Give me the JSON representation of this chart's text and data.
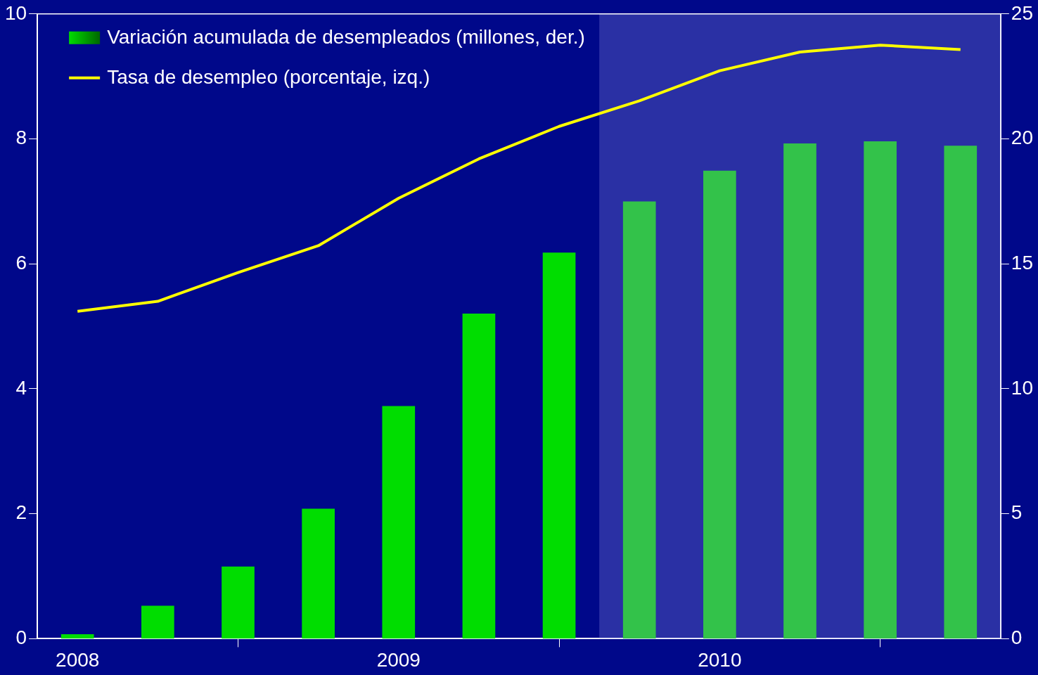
{
  "chart_data": {
    "type": "bar",
    "x": [
      2008,
      2008.25,
      2008.5,
      2008.75,
      2009,
      2009.25,
      2009.5,
      2009.75,
      2010,
      2010.25,
      2010.5,
      2010.75
    ],
    "series": [
      {
        "name": "Variación acumulada de desempleados (millones, der.)",
        "axis": "y2",
        "color": "#00dd00",
        "colors": [
          "#00dd00",
          "#00dd00",
          "#00dd00",
          "#00dd00",
          "#00dd00",
          "#00dd00",
          "#00dd00",
          "#33c24a",
          "#33c24a",
          "#33c24a",
          "#33c24a",
          "#33c24a"
        ],
        "values": [
          0.17,
          1.31,
          2.88,
          5.19,
          9.3,
          13.0,
          15.44,
          17.49,
          18.72,
          19.81,
          19.89,
          19.72
        ]
      },
      {
        "name": "Tasa de desempleo (porcentaje, izq.)",
        "type": "line",
        "axis": "y",
        "color": "#ffff00",
        "values": [
          5.24,
          5.4,
          5.86,
          6.29,
          7.05,
          7.68,
          8.2,
          8.61,
          9.09,
          9.39,
          9.5,
          9.43
        ]
      }
    ],
    "xlim": [
      2007.875,
      2010.875
    ],
    "xticks": [
      2008,
      2009,
      2010
    ],
    "ylim": [
      0,
      10
    ],
    "yticks": [
      0,
      2,
      4,
      6,
      8,
      10
    ],
    "y2lim": [
      0,
      25
    ],
    "y2ticks": [
      0,
      5,
      10,
      15,
      20,
      25
    ],
    "bands": [
      {
        "axis": "x",
        "from": 2009.625,
        "to": 2010.875,
        "color": "#8a90e0"
      }
    ],
    "grid": false,
    "legend": "top left",
    "marker": "none",
    "line_style": "solid"
  }
}
